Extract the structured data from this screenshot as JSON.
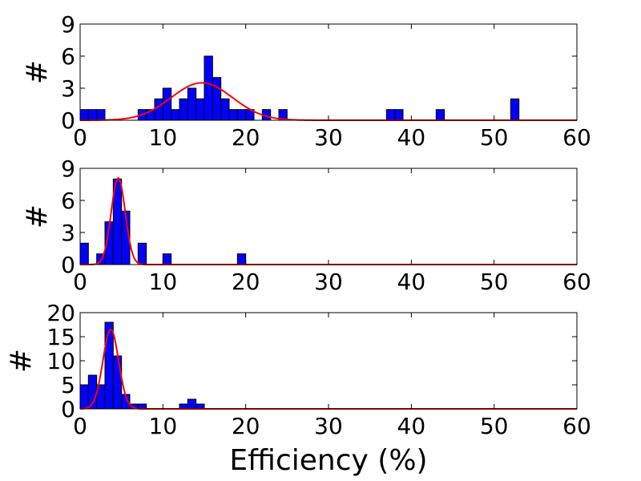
{
  "figure": {
    "xlabel": "Efficiency (%)"
  },
  "colors": {
    "bar_fill": "#0000ff",
    "bar_edge": "#000000",
    "fit_line": "#ff0000"
  },
  "chart_data": [
    {
      "type": "bar",
      "subtype": "histogram",
      "ylabel": "#",
      "xlim": [
        0,
        60
      ],
      "ylim": [
        0,
        9
      ],
      "xticks": [
        0,
        10,
        20,
        30,
        40,
        50,
        60
      ],
      "yticks": [
        0,
        3,
        6,
        9
      ],
      "bin_width": 1,
      "bins": [
        {
          "x": 0,
          "count": 1
        },
        {
          "x": 1,
          "count": 1
        },
        {
          "x": 2,
          "count": 1
        },
        {
          "x": 7,
          "count": 1
        },
        {
          "x": 8,
          "count": 1
        },
        {
          "x": 9,
          "count": 2
        },
        {
          "x": 10,
          "count": 3
        },
        {
          "x": 11,
          "count": 1
        },
        {
          "x": 12,
          "count": 2
        },
        {
          "x": 13,
          "count": 3
        },
        {
          "x": 14,
          "count": 2
        },
        {
          "x": 15,
          "count": 6
        },
        {
          "x": 16,
          "count": 4
        },
        {
          "x": 17,
          "count": 2
        },
        {
          "x": 18,
          "count": 1
        },
        {
          "x": 19,
          "count": 1
        },
        {
          "x": 20,
          "count": 1
        },
        {
          "x": 22,
          "count": 1
        },
        {
          "x": 24,
          "count": 1
        },
        {
          "x": 37,
          "count": 1
        },
        {
          "x": 38,
          "count": 1
        },
        {
          "x": 43,
          "count": 1
        },
        {
          "x": 52,
          "count": 2
        }
      ],
      "gaussian_fit": {
        "mean": 14.7,
        "sigma": 3.7,
        "amplitude": 3.5
      }
    },
    {
      "type": "bar",
      "subtype": "histogram",
      "ylabel": "#",
      "xlim": [
        0,
        60
      ],
      "ylim": [
        0,
        9
      ],
      "xticks": [
        0,
        10,
        20,
        30,
        40,
        50,
        60
      ],
      "yticks": [
        0,
        3,
        6,
        9
      ],
      "bin_width": 1,
      "bins": [
        {
          "x": 0,
          "count": 2
        },
        {
          "x": 2,
          "count": 1
        },
        {
          "x": 3,
          "count": 4
        },
        {
          "x": 4,
          "count": 8
        },
        {
          "x": 5,
          "count": 5
        },
        {
          "x": 7,
          "count": 2
        },
        {
          "x": 10,
          "count": 1
        },
        {
          "x": 19,
          "count": 1
        }
      ],
      "gaussian_fit": {
        "mean": 4.6,
        "sigma": 0.85,
        "amplitude": 8.1
      }
    },
    {
      "type": "bar",
      "subtype": "histogram",
      "ylabel": "#",
      "xlim": [
        0,
        60
      ],
      "ylim": [
        0,
        20
      ],
      "xticks": [
        0,
        10,
        20,
        30,
        40,
        50,
        60
      ],
      "yticks": [
        0,
        5,
        10,
        15,
        20
      ],
      "bin_width": 1,
      "bins": [
        {
          "x": 0,
          "count": 5
        },
        {
          "x": 1,
          "count": 7
        },
        {
          "x": 2,
          "count": 5
        },
        {
          "x": 3,
          "count": 18
        },
        {
          "x": 4,
          "count": 11
        },
        {
          "x": 5,
          "count": 3
        },
        {
          "x": 6,
          "count": 1
        },
        {
          "x": 7,
          "count": 1
        },
        {
          "x": 12,
          "count": 1
        },
        {
          "x": 13,
          "count": 2
        },
        {
          "x": 14,
          "count": 1
        }
      ],
      "gaussian_fit": {
        "mean": 3.7,
        "sigma": 0.95,
        "amplitude": 16.5
      }
    }
  ]
}
